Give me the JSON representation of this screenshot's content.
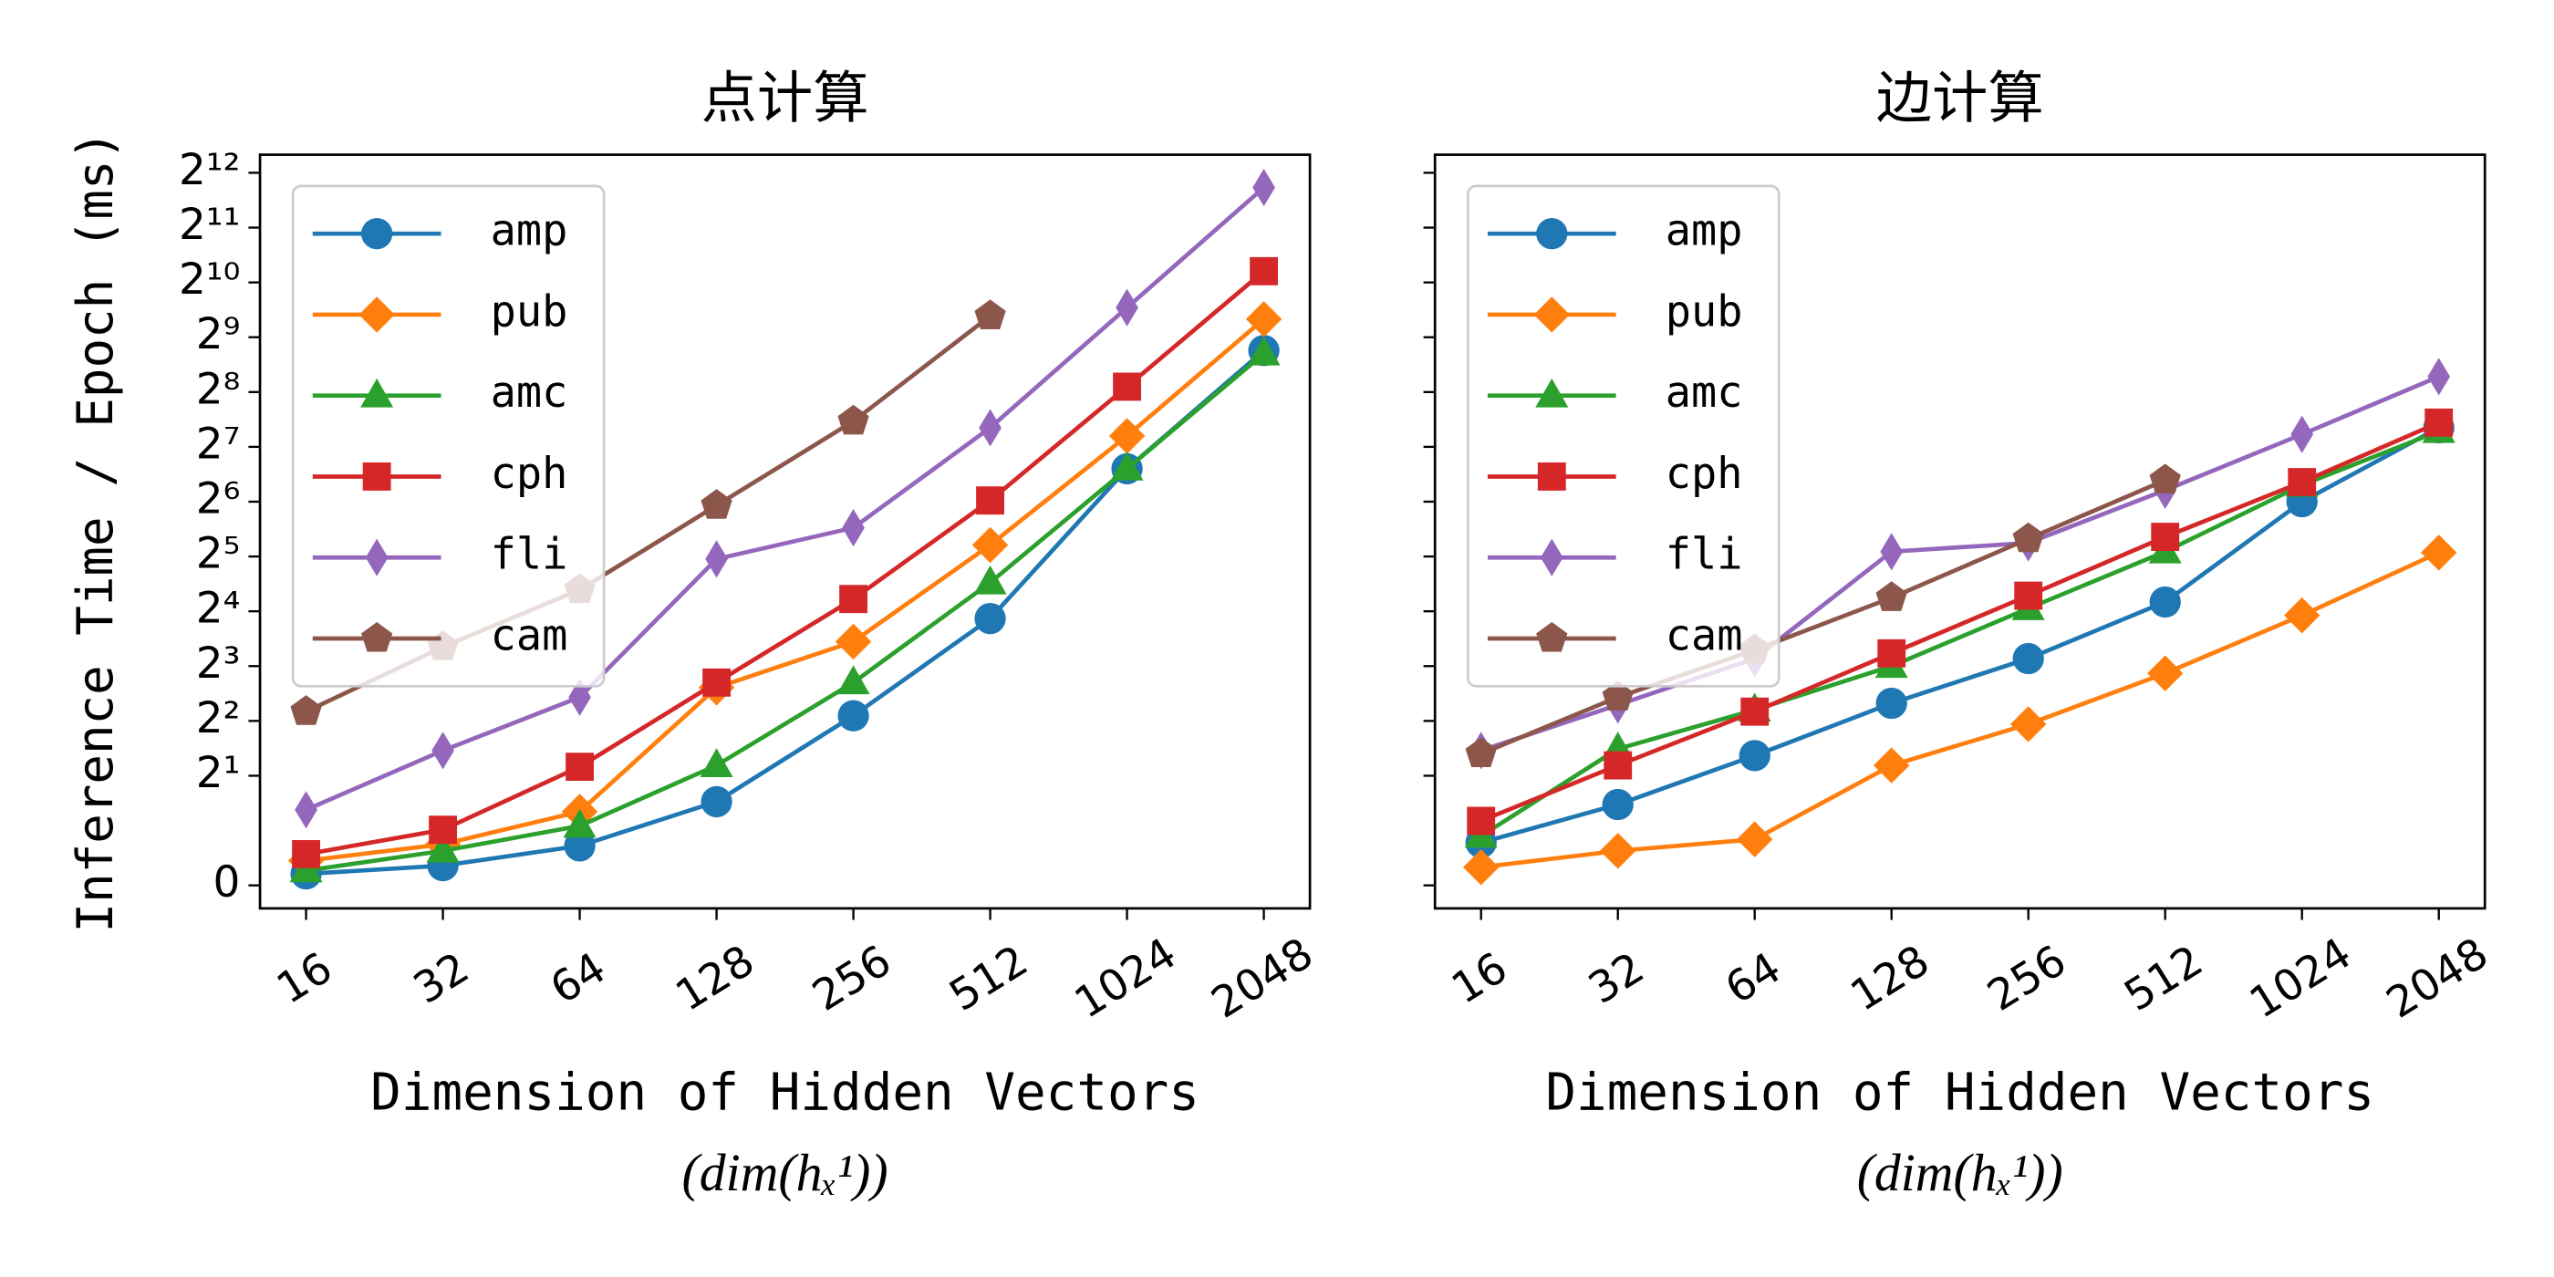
{
  "chart_data": [
    {
      "type": "line",
      "title": "点计算",
      "y_label": "Inference Time / Epoch (ms)",
      "x_label": "Dimension of Hidden Vectors",
      "x_label_2": "(dim(hₓ¹))",
      "categories": [
        "16",
        "32",
        "64",
        "128",
        "256",
        "512",
        "1024",
        "2048"
      ],
      "yscale": "symlog",
      "base": 2,
      "linthresh": 1,
      "ylim": [
        -0.42,
        5150
      ],
      "yticks": [
        0,
        {
          "value": 2,
          "label": "2¹"
        },
        {
          "value": 4,
          "label": "2²"
        },
        {
          "value": 8,
          "label": "2³"
        },
        {
          "value": 16,
          "label": "2⁴"
        },
        {
          "value": 32,
          "label": "2⁵"
        },
        {
          "value": 64,
          "label": "2⁶"
        },
        {
          "value": 128,
          "label": "2⁷"
        },
        {
          "value": 256,
          "label": "2⁸"
        },
        {
          "value": 512,
          "label": "2⁹"
        },
        {
          "value": 1024,
          "label": "2¹⁰"
        },
        {
          "value": 2048,
          "label": "2¹¹"
        },
        {
          "value": 4096,
          "label": "2¹²"
        }
      ],
      "legend": "upper left",
      "series": [
        {
          "name": "amp",
          "color": "#1f77b4",
          "marker": "circle",
          "values": [
            0.21,
            0.36,
            0.72,
            1.44,
            4.27,
            14.6,
            97,
            433
          ]
        },
        {
          "name": "pub",
          "color": "#ff7f0e",
          "marker": "diamond",
          "values": [
            0.45,
            0.75,
            1.27,
            6.1,
            10.9,
            37,
            147,
            644
          ]
        },
        {
          "name": "amc",
          "color": "#2ca02c",
          "marker": "triangle",
          "values": [
            0.27,
            0.63,
            1.06,
            2.28,
            6.5,
            23,
            97,
            416
          ]
        },
        {
          "name": "cph",
          "color": "#d62728",
          "marker": "square",
          "values": [
            0.57,
            1.01,
            2.24,
            6.5,
            18.7,
            65,
            274,
            1180
          ]
        },
        {
          "name": "fli",
          "color": "#9467bd",
          "marker": "thin_diamond",
          "values": [
            1.3,
            2.75,
            5.4,
            31,
            46,
            163,
            745,
            3400
          ]
        },
        {
          "name": "cam",
          "color": "#8c564b",
          "marker": "pentagon",
          "values": [
            4.5,
            10.2,
            21,
            61,
            177,
            670,
            null,
            null
          ]
        }
      ]
    },
    {
      "type": "line",
      "title": "边计算",
      "x_label": "Dimension of Hidden Vectors",
      "x_label_2": "(dim(hₓ¹))",
      "categories": [
        "16",
        "32",
        "64",
        "128",
        "256",
        "512",
        "1024",
        "2048"
      ],
      "sharey": true,
      "legend": "upper left",
      "series": [
        {
          "name": "amp",
          "color": "#1f77b4",
          "marker": "circle",
          "values": [
            0.78,
            1.39,
            2.58,
            5.0,
            8.8,
            18,
            64,
            163
          ]
        },
        {
          "name": "pub",
          "color": "#ff7f0e",
          "marker": "diamond",
          "values": [
            0.33,
            0.63,
            0.84,
            2.28,
            3.84,
            7.3,
            15.2,
            33.6
          ]
        },
        {
          "name": "amc",
          "color": "#2ca02c",
          "marker": "triangle",
          "values": [
            0.9,
            2.81,
            4.6,
            8.0,
            16.6,
            34,
            79,
            156
          ]
        },
        {
          "name": "cph",
          "color": "#d62728",
          "marker": "square",
          "values": [
            1.13,
            2.28,
            4.5,
            9.4,
            19.5,
            41,
            82,
            174
          ]
        },
        {
          "name": "fli",
          "color": "#9467bd",
          "marker": "thin_diamond",
          "values": [
            2.75,
            4.9,
            8.8,
            34,
            38,
            74,
            150,
            311
          ]
        },
        {
          "name": "cam",
          "color": "#8c564b",
          "marker": "pentagon",
          "values": [
            2.64,
            5.4,
            9.8,
            19,
            40,
            84,
            null,
            null
          ]
        }
      ]
    }
  ]
}
